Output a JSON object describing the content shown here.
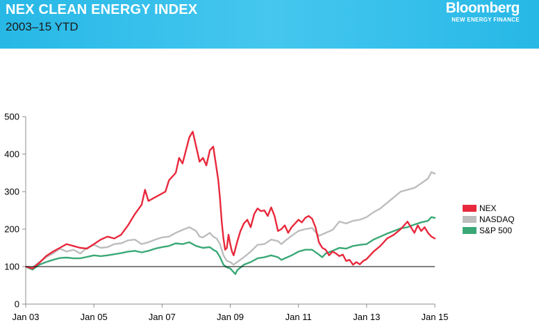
{
  "header": {
    "title": "NEX CLEAN ENERGY INDEX",
    "subtitle": "2003–15 YTD",
    "brand": "Bloomberg",
    "brand_tagline": "NEW ENERGY FINANCE"
  },
  "colors": {
    "banner": "#2bb9e6",
    "nex": "#e8283c",
    "nasdaq": "#bdbdbd",
    "sp500": "#3aa876",
    "baseline": "#000000"
  },
  "chart_data": {
    "type": "line",
    "title": "NEX CLEAN ENERGY INDEX",
    "subtitle": "2003–15 YTD",
    "xlabel": "",
    "ylabel": "",
    "xlim": [
      2003.0,
      2015.0
    ],
    "ylim": [
      0,
      500
    ],
    "yticks": [
      0,
      100,
      200,
      300,
      400,
      500
    ],
    "xticks": [
      {
        "x": 2003.0,
        "label": "Jan 03"
      },
      {
        "x": 2005.0,
        "label": "Jan 05"
      },
      {
        "x": 2007.0,
        "label": "Jan 07"
      },
      {
        "x": 2009.0,
        "label": "Jan 09"
      },
      {
        "x": 2011.0,
        "label": "Jan 11"
      },
      {
        "x": 2013.0,
        "label": "Jan 13"
      },
      {
        "x": 2015.0,
        "label": "Jan 15"
      }
    ],
    "reference_line": 100,
    "grid": false,
    "legend_position": "right",
    "series": [
      {
        "name": "NEX",
        "color": "#e8283c",
        "points": [
          [
            2003.0,
            100
          ],
          [
            2003.2,
            95
          ],
          [
            2003.4,
            110
          ],
          [
            2003.6,
            128
          ],
          [
            2003.8,
            140
          ],
          [
            2004.0,
            150
          ],
          [
            2004.2,
            160
          ],
          [
            2004.4,
            155
          ],
          [
            2004.6,
            150
          ],
          [
            2004.8,
            148
          ],
          [
            2005.0,
            160
          ],
          [
            2005.2,
            172
          ],
          [
            2005.4,
            180
          ],
          [
            2005.6,
            175
          ],
          [
            2005.8,
            185
          ],
          [
            2006.0,
            210
          ],
          [
            2006.2,
            240
          ],
          [
            2006.4,
            265
          ],
          [
            2006.5,
            305
          ],
          [
            2006.6,
            275
          ],
          [
            2006.8,
            285
          ],
          [
            2007.0,
            295
          ],
          [
            2007.1,
            300
          ],
          [
            2007.2,
            330
          ],
          [
            2007.4,
            350
          ],
          [
            2007.5,
            390
          ],
          [
            2007.6,
            375
          ],
          [
            2007.7,
            410
          ],
          [
            2007.8,
            445
          ],
          [
            2007.9,
            460
          ],
          [
            2008.0,
            420
          ],
          [
            2008.1,
            380
          ],
          [
            2008.2,
            390
          ],
          [
            2008.3,
            370
          ],
          [
            2008.4,
            410
          ],
          [
            2008.5,
            420
          ],
          [
            2008.6,
            360
          ],
          [
            2008.65,
            330
          ],
          [
            2008.7,
            280
          ],
          [
            2008.75,
            220
          ],
          [
            2008.8,
            175
          ],
          [
            2008.85,
            145
          ],
          [
            2008.9,
            150
          ],
          [
            2008.95,
            185
          ],
          [
            2009.0,
            160
          ],
          [
            2009.05,
            140
          ],
          [
            2009.1,
            130
          ],
          [
            2009.2,
            165
          ],
          [
            2009.3,
            195
          ],
          [
            2009.4,
            215
          ],
          [
            2009.5,
            225
          ],
          [
            2009.6,
            205
          ],
          [
            2009.7,
            240
          ],
          [
            2009.8,
            255
          ],
          [
            2009.9,
            248
          ],
          [
            2010.0,
            250
          ],
          [
            2010.1,
            235
          ],
          [
            2010.2,
            258
          ],
          [
            2010.3,
            235
          ],
          [
            2010.4,
            195
          ],
          [
            2010.5,
            200
          ],
          [
            2010.6,
            210
          ],
          [
            2010.7,
            190
          ],
          [
            2010.8,
            205
          ],
          [
            2010.9,
            215
          ],
          [
            2011.0,
            225
          ],
          [
            2011.1,
            218
          ],
          [
            2011.2,
            230
          ],
          [
            2011.3,
            235
          ],
          [
            2011.4,
            228
          ],
          [
            2011.5,
            205
          ],
          [
            2011.6,
            165
          ],
          [
            2011.7,
            150
          ],
          [
            2011.8,
            145
          ],
          [
            2011.9,
            130
          ],
          [
            2012.0,
            140
          ],
          [
            2012.1,
            135
          ],
          [
            2012.2,
            128
          ],
          [
            2012.3,
            132
          ],
          [
            2012.4,
            115
          ],
          [
            2012.5,
            118
          ],
          [
            2012.6,
            105
          ],
          [
            2012.7,
            112
          ],
          [
            2012.8,
            106
          ],
          [
            2012.9,
            115
          ],
          [
            2013.0,
            120
          ],
          [
            2013.2,
            140
          ],
          [
            2013.4,
            155
          ],
          [
            2013.6,
            175
          ],
          [
            2013.8,
            185
          ],
          [
            2014.0,
            200
          ],
          [
            2014.2,
            220
          ],
          [
            2014.3,
            205
          ],
          [
            2014.4,
            190
          ],
          [
            2014.5,
            210
          ],
          [
            2014.6,
            195
          ],
          [
            2014.7,
            205
          ],
          [
            2014.8,
            190
          ],
          [
            2014.9,
            180
          ],
          [
            2015.0,
            175
          ]
        ]
      },
      {
        "name": "NASDAQ",
        "color": "#bdbdbd",
        "points": [
          [
            2003.0,
            100
          ],
          [
            2003.2,
            98
          ],
          [
            2003.4,
            112
          ],
          [
            2003.6,
            125
          ],
          [
            2003.8,
            135
          ],
          [
            2004.0,
            148
          ],
          [
            2004.2,
            140
          ],
          [
            2004.4,
            145
          ],
          [
            2004.6,
            135
          ],
          [
            2004.8,
            150
          ],
          [
            2005.0,
            158
          ],
          [
            2005.2,
            150
          ],
          [
            2005.4,
            152
          ],
          [
            2005.6,
            160
          ],
          [
            2005.8,
            162
          ],
          [
            2006.0,
            170
          ],
          [
            2006.2,
            172
          ],
          [
            2006.4,
            160
          ],
          [
            2006.6,
            165
          ],
          [
            2006.8,
            172
          ],
          [
            2007.0,
            178
          ],
          [
            2007.2,
            180
          ],
          [
            2007.4,
            190
          ],
          [
            2007.6,
            198
          ],
          [
            2007.8,
            205
          ],
          [
            2008.0,
            195
          ],
          [
            2008.1,
            180
          ],
          [
            2008.2,
            178
          ],
          [
            2008.4,
            190
          ],
          [
            2008.5,
            180
          ],
          [
            2008.6,
            175
          ],
          [
            2008.7,
            160
          ],
          [
            2008.8,
            130
          ],
          [
            2008.9,
            115
          ],
          [
            2009.0,
            112
          ],
          [
            2009.1,
            105
          ],
          [
            2009.2,
            112
          ],
          [
            2009.4,
            125
          ],
          [
            2009.6,
            140
          ],
          [
            2009.8,
            158
          ],
          [
            2010.0,
            160
          ],
          [
            2010.2,
            172
          ],
          [
            2010.4,
            168
          ],
          [
            2010.5,
            160
          ],
          [
            2010.6,
            168
          ],
          [
            2010.8,
            182
          ],
          [
            2011.0,
            195
          ],
          [
            2011.2,
            200
          ],
          [
            2011.4,
            203
          ],
          [
            2011.6,
            182
          ],
          [
            2011.8,
            190
          ],
          [
            2012.0,
            198
          ],
          [
            2012.2,
            220
          ],
          [
            2012.4,
            215
          ],
          [
            2012.6,
            222
          ],
          [
            2012.8,
            225
          ],
          [
            2013.0,
            232
          ],
          [
            2013.2,
            245
          ],
          [
            2013.4,
            255
          ],
          [
            2013.6,
            270
          ],
          [
            2013.8,
            285
          ],
          [
            2014.0,
            300
          ],
          [
            2014.2,
            305
          ],
          [
            2014.4,
            310
          ],
          [
            2014.6,
            322
          ],
          [
            2014.8,
            335
          ],
          [
            2014.9,
            352
          ],
          [
            2015.0,
            348
          ]
        ]
      },
      {
        "name": "S&P 500",
        "color": "#3aa876",
        "points": [
          [
            2003.0,
            100
          ],
          [
            2003.2,
            92
          ],
          [
            2003.4,
            105
          ],
          [
            2003.6,
            112
          ],
          [
            2003.8,
            118
          ],
          [
            2004.0,
            123
          ],
          [
            2004.2,
            124
          ],
          [
            2004.4,
            122
          ],
          [
            2004.6,
            122
          ],
          [
            2004.8,
            126
          ],
          [
            2005.0,
            130
          ],
          [
            2005.2,
            128
          ],
          [
            2005.4,
            130
          ],
          [
            2005.6,
            133
          ],
          [
            2005.8,
            136
          ],
          [
            2006.0,
            140
          ],
          [
            2006.2,
            142
          ],
          [
            2006.4,
            138
          ],
          [
            2006.6,
            142
          ],
          [
            2006.8,
            148
          ],
          [
            2007.0,
            152
          ],
          [
            2007.2,
            155
          ],
          [
            2007.4,
            162
          ],
          [
            2007.6,
            160
          ],
          [
            2007.8,
            165
          ],
          [
            2008.0,
            155
          ],
          [
            2008.2,
            150
          ],
          [
            2008.4,
            152
          ],
          [
            2008.5,
            145
          ],
          [
            2008.6,
            140
          ],
          [
            2008.7,
            125
          ],
          [
            2008.8,
            105
          ],
          [
            2008.9,
            98
          ],
          [
            2009.0,
            95
          ],
          [
            2009.1,
            85
          ],
          [
            2009.15,
            80
          ],
          [
            2009.2,
            90
          ],
          [
            2009.4,
            105
          ],
          [
            2009.6,
            112
          ],
          [
            2009.8,
            122
          ],
          [
            2010.0,
            125
          ],
          [
            2010.2,
            130
          ],
          [
            2010.4,
            125
          ],
          [
            2010.5,
            118
          ],
          [
            2010.6,
            122
          ],
          [
            2010.8,
            130
          ],
          [
            2011.0,
            140
          ],
          [
            2011.2,
            145
          ],
          [
            2011.4,
            145
          ],
          [
            2011.6,
            132
          ],
          [
            2011.7,
            125
          ],
          [
            2011.8,
            135
          ],
          [
            2012.0,
            142
          ],
          [
            2012.2,
            150
          ],
          [
            2012.4,
            148
          ],
          [
            2012.6,
            155
          ],
          [
            2012.8,
            158
          ],
          [
            2013.0,
            160
          ],
          [
            2013.2,
            172
          ],
          [
            2013.4,
            180
          ],
          [
            2013.6,
            188
          ],
          [
            2013.8,
            195
          ],
          [
            2014.0,
            202
          ],
          [
            2014.2,
            205
          ],
          [
            2014.4,
            212
          ],
          [
            2014.6,
            218
          ],
          [
            2014.8,
            222
          ],
          [
            2014.9,
            232
          ],
          [
            2015.0,
            230
          ]
        ]
      }
    ]
  }
}
